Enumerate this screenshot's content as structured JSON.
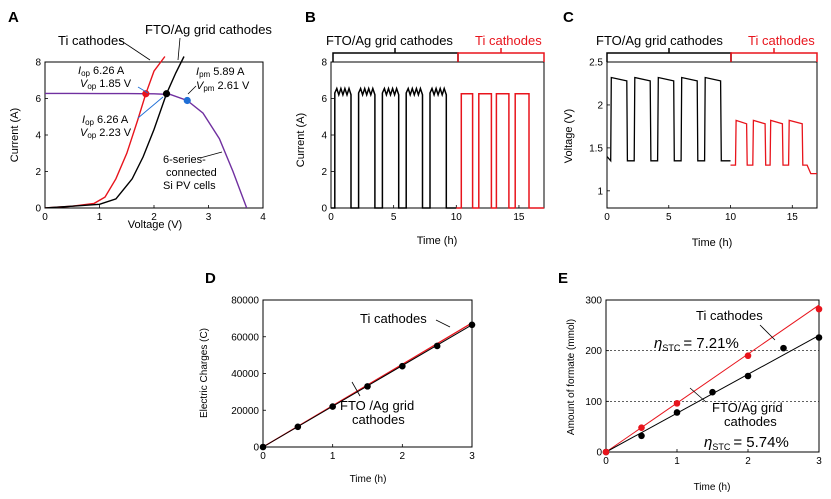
{
  "colors": {
    "black": "#000000",
    "red": "#e8141c",
    "purple": "#7030a0",
    "blue": "#1f6fd6",
    "grey": "#999999"
  },
  "panels": {
    "A": {
      "label": "A",
      "xlabel": "Voltage (V)",
      "ylabel": "Current (A)",
      "xticks": [
        "0",
        "1",
        "2",
        "3",
        "4"
      ],
      "yticks": [
        "0",
        "2",
        "4",
        "6",
        "8"
      ],
      "legend_ti": "Ti cathodes",
      "legend_fto": "FTO/Ag grid cathodes",
      "pv_note": [
        "6-series-",
        "connected",
        "Si PV cells"
      ],
      "ti_op": {
        "line1": "I",
        "sub1": "op",
        "val1": " 6.26 A",
        "line2": "V",
        "sub2": "op",
        "val2": " 1.85 V"
      },
      "fto_op": {
        "line1": "I",
        "sub1": "op",
        "val1": " 6.26 A",
        "line2": "V",
        "sub2": "op",
        "val2": " 2.23 V"
      },
      "pm": {
        "line1": "I",
        "sub1": "pm",
        "val1": " 5.89 A",
        "line2": "V",
        "sub2": "pm",
        "val2": " 2.61 V"
      }
    },
    "B": {
      "label": "B",
      "xlabel": "Time (h)",
      "ylabel": "Current  (A)",
      "xticks": [
        "0",
        "5",
        "10",
        "15"
      ],
      "yticks": [
        "0",
        "2",
        "4",
        "6",
        "8"
      ],
      "fto_label": "FTO/Ag grid cathodes",
      "ti_label": "Ti cathodes"
    },
    "C": {
      "label": "C",
      "xlabel": "Time (h)",
      "ylabel": "Voltage (V)",
      "xticks": [
        "0",
        "5",
        "10",
        "15"
      ],
      "yticks": [
        "1",
        "1.5",
        "2",
        "2.5"
      ],
      "fto_label": "FTO/Ag grid cathodes",
      "ti_label": "Ti cathodes"
    },
    "D": {
      "label": "D",
      "xlabel": "Time (h)",
      "ylabel": "Electric Charges (C)",
      "xticks": [
        "0",
        "1",
        "2",
        "3"
      ],
      "yticks": [
        "0",
        "20000",
        "40000",
        "60000",
        "80000"
      ],
      "ti_label": "Ti cathodes",
      "fto_label": [
        "FTO /Ag grid",
        "cathodes"
      ]
    },
    "E": {
      "label": "E",
      "xlabel": "Time (h)",
      "ylabel": "Amount of formate (mmol)",
      "xticks": [
        "0",
        "1",
        "2",
        "3"
      ],
      "yticks": [
        "0",
        "100",
        "200",
        "300"
      ],
      "ti_label": "Ti cathodes",
      "fto_label": [
        "FTO/Ag grid",
        "cathodes"
      ],
      "eta_ti": "= 7.21%",
      "eta_fto": "= 5.74%",
      "eta_sym": "η",
      "eta_sub": "STC"
    }
  },
  "chart_data": [
    {
      "panel": "A",
      "type": "line",
      "title": "",
      "xlim": [
        0,
        4
      ],
      "ylim": [
        0,
        8
      ],
      "series": [
        {
          "name": "6-series-connected Si PV cells",
          "color": "#7030a0",
          "x": [
            0,
            0.5,
            1,
            1.5,
            2,
            2.3,
            2.61,
            2.9,
            3.2,
            3.45,
            3.6,
            3.7
          ],
          "y": [
            6.28,
            6.28,
            6.27,
            6.27,
            6.26,
            6.22,
            5.89,
            5.2,
            3.8,
            2.0,
            0.8,
            0
          ]
        },
        {
          "name": "Ti cathodes",
          "color": "#e8141c",
          "x": [
            0,
            0.5,
            0.9,
            1.1,
            1.3,
            1.5,
            1.7,
            1.85,
            2.0,
            2.2
          ],
          "y": [
            0,
            0.1,
            0.25,
            0.6,
            1.6,
            3.0,
            4.8,
            6.26,
            7.5,
            8.3
          ]
        },
        {
          "name": "FTO/Ag grid cathodes",
          "color": "#000000",
          "x": [
            0,
            0.5,
            1.0,
            1.3,
            1.6,
            1.8,
            2.0,
            2.23,
            2.4,
            2.55
          ],
          "y": [
            0,
            0.1,
            0.2,
            0.5,
            1.6,
            2.8,
            4.3,
            6.26,
            7.4,
            8.3
          ]
        }
      ],
      "points": [
        {
          "x": 1.85,
          "y": 6.26,
          "color": "#e8141c"
        },
        {
          "x": 2.23,
          "y": 6.26,
          "color": "#000000"
        },
        {
          "x": 2.61,
          "y": 5.89,
          "color": "#1f6fd6"
        }
      ]
    },
    {
      "panel": "B",
      "type": "line",
      "xlim": [
        0,
        17
      ],
      "ylim": [
        0,
        8
      ],
      "series": [
        {
          "name": "FTO/Ag grid cathodes",
          "color": "#000000",
          "on_intervals": [
            [
              0.3,
              1.6
            ],
            [
              2.2,
              3.5
            ],
            [
              4.1,
              5.4
            ],
            [
              6.0,
              7.3
            ],
            [
              7.9,
              9.2
            ]
          ],
          "on_value": 6.3,
          "xrange": [
            0,
            10
          ]
        },
        {
          "name": "Ti cathodes",
          "color": "#e8141c",
          "on_intervals": [
            [
              10.4,
              11.3
            ],
            [
              11.8,
              12.8
            ],
            [
              13.2,
              14.2
            ],
            [
              14.7,
              15.8
            ]
          ],
          "on_value": 6.26,
          "xrange": [
            10,
            17
          ]
        }
      ]
    },
    {
      "panel": "C",
      "type": "line",
      "xlim": [
        0,
        17
      ],
      "ylim": [
        0.8,
        2.5
      ],
      "series": [
        {
          "name": "FTO/Ag grid cathodes",
          "color": "#000000",
          "base": 1.35,
          "peak": 2.32,
          "start": 1.4,
          "on_intervals": [
            [
              0.3,
              1.6
            ],
            [
              2.2,
              3.5
            ],
            [
              4.1,
              5.4
            ],
            [
              6.0,
              7.3
            ],
            [
              7.9,
              9.2
            ]
          ],
          "xrange": [
            0,
            10
          ]
        },
        {
          "name": "Ti cathodes",
          "color": "#e8141c",
          "base": 1.3,
          "peak": 1.82,
          "end": 1.2,
          "on_intervals": [
            [
              10.4,
              11.3
            ],
            [
              11.8,
              12.8
            ],
            [
              13.2,
              14.2
            ],
            [
              14.7,
              15.8
            ]
          ],
          "xrange": [
            10,
            17
          ]
        }
      ]
    },
    {
      "panel": "D",
      "type": "scatter",
      "xlim": [
        0,
        3
      ],
      "ylim": [
        0,
        80000
      ],
      "series": [
        {
          "name": "FTO/Ag grid cathodes",
          "color": "#000000",
          "x": [
            0,
            0.5,
            1,
            1.5,
            2,
            2.5,
            3
          ],
          "y": [
            0,
            11000,
            22000,
            33000,
            44000,
            55000,
            66500
          ]
        },
        {
          "name": "Ti cathodes",
          "color": "#e8141c",
          "x": [
            0,
            3
          ],
          "y": [
            0,
            67500
          ]
        }
      ]
    },
    {
      "panel": "E",
      "type": "scatter",
      "xlim": [
        0,
        3
      ],
      "ylim": [
        0,
        300
      ],
      "series": [
        {
          "name": "Ti cathodes",
          "color": "#e8141c",
          "x": [
            0,
            0.5,
            1,
            2,
            3
          ],
          "y": [
            0,
            48,
            96,
            190,
            282
          ]
        },
        {
          "name": "FTO/Ag grid cathodes",
          "color": "#000000",
          "x": [
            0,
            0.5,
            1,
            1.5,
            2,
            2.5,
            3
          ],
          "y": [
            0,
            32,
            78,
            118,
            150,
            205,
            226
          ]
        }
      ],
      "reference_lines": [
        100,
        200,
        300
      ]
    }
  ]
}
